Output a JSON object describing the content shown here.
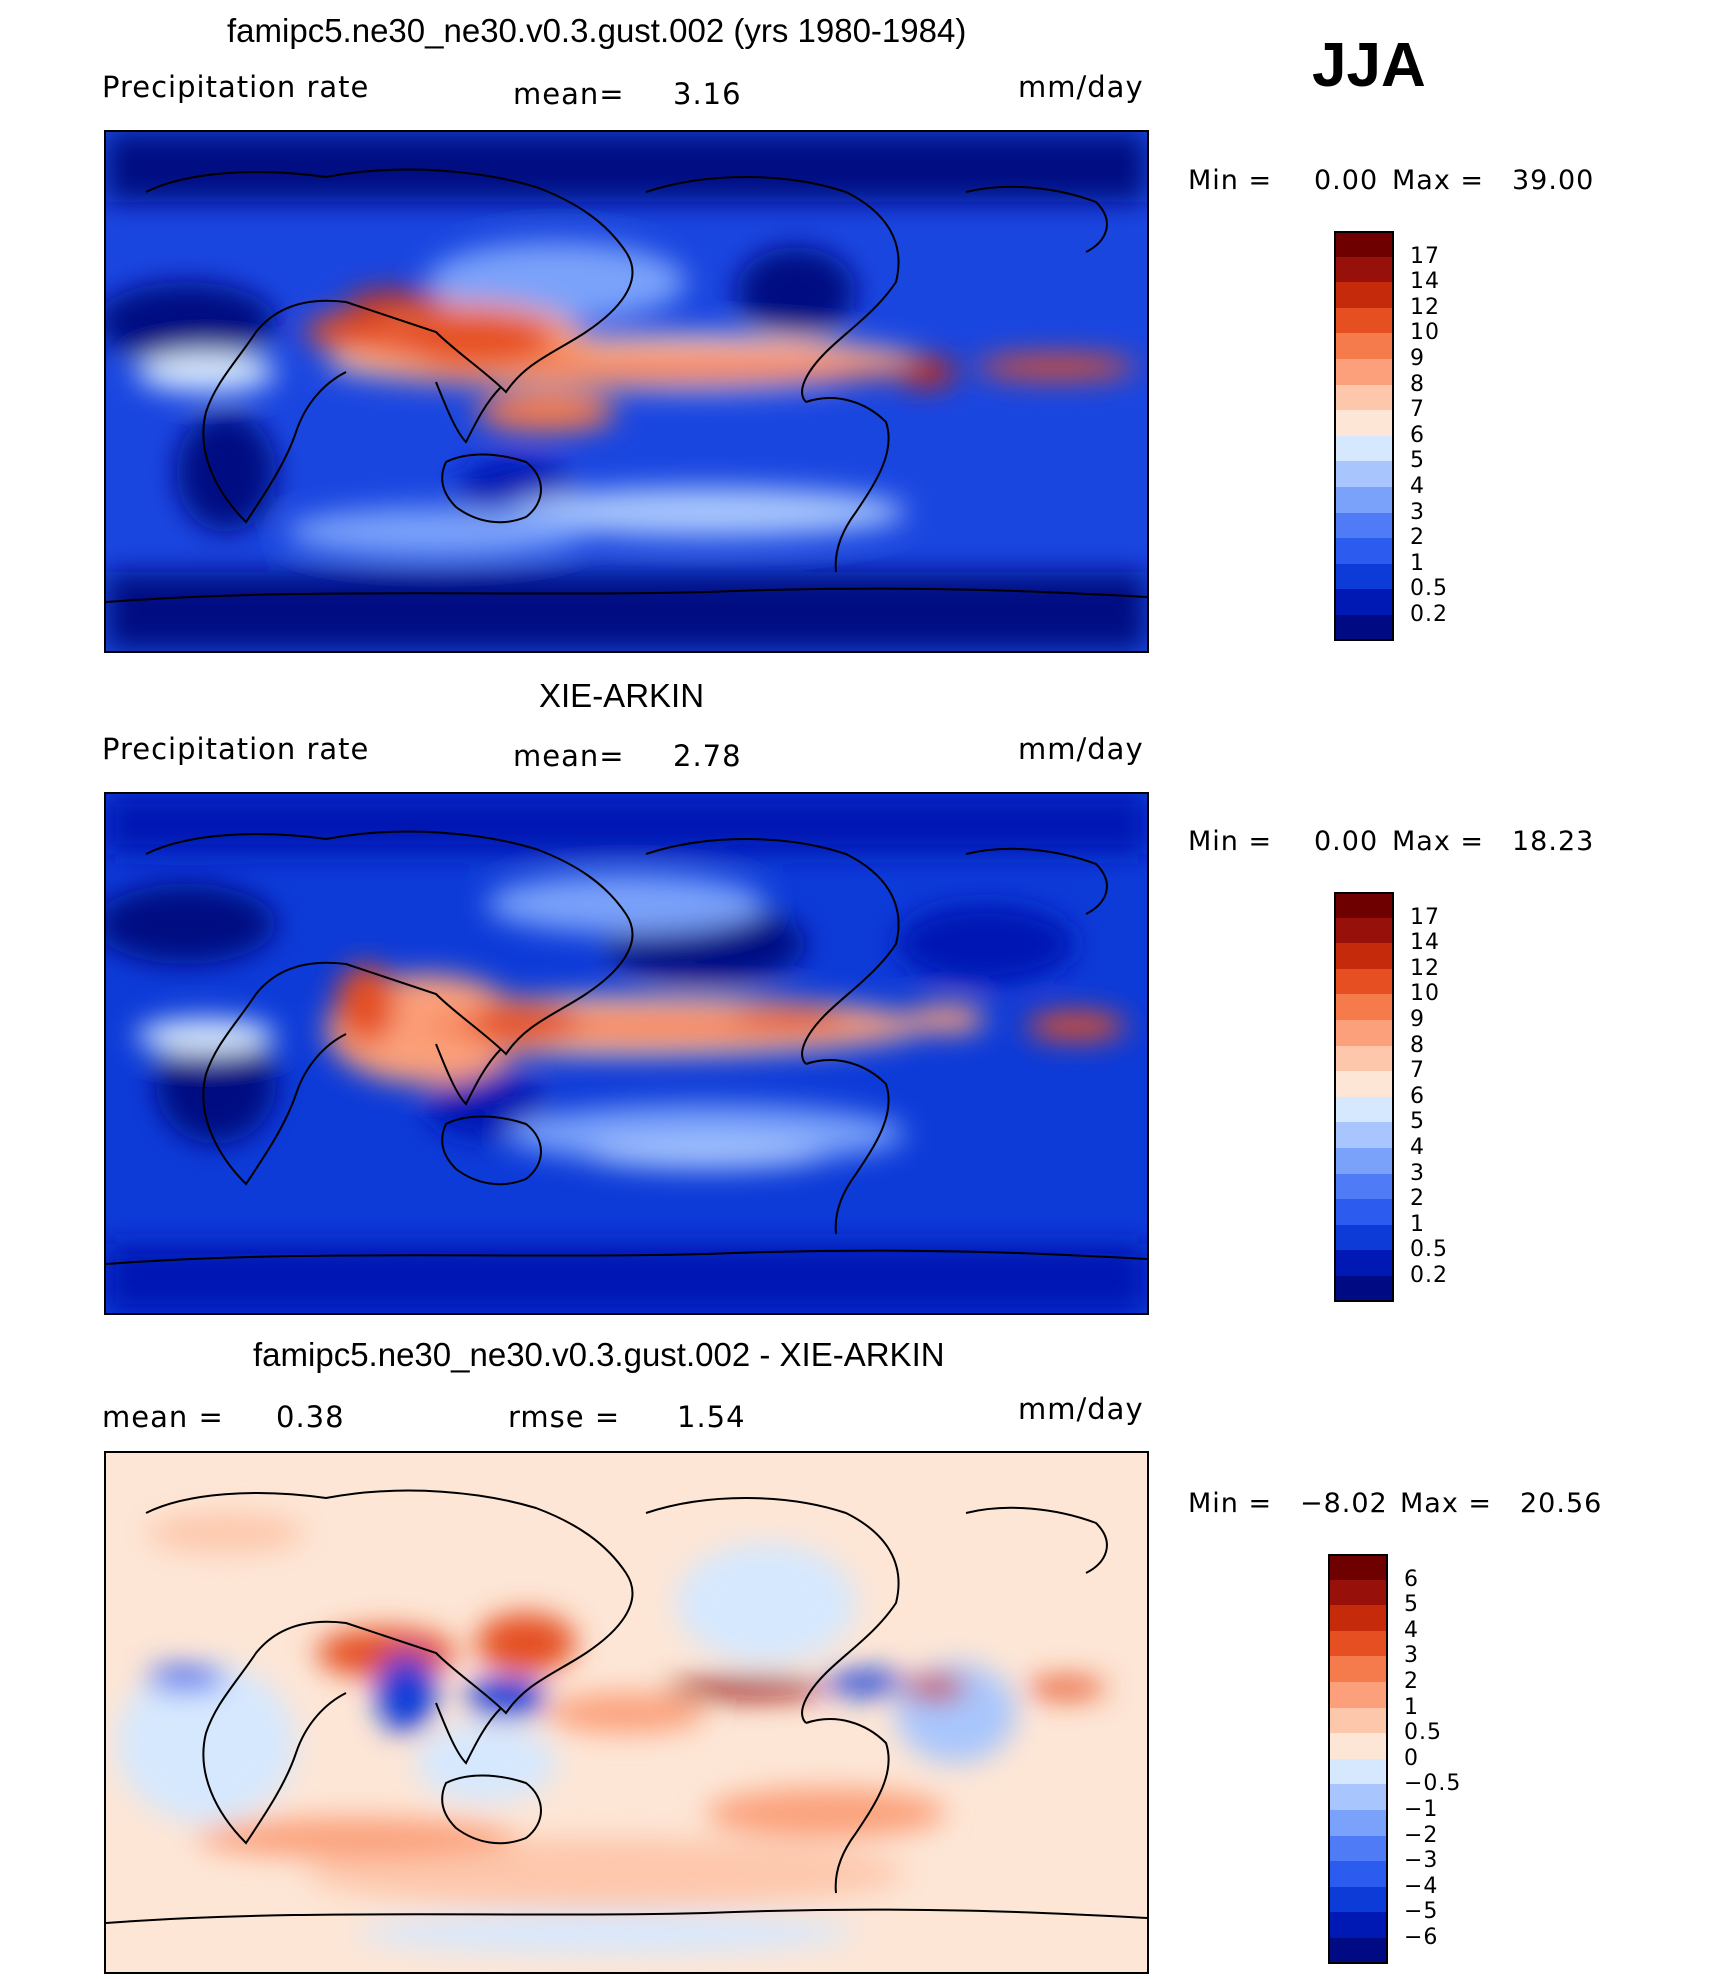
{
  "season": "JJA",
  "colors": {
    "precip_scale": [
      "#000a82",
      "#0018b4",
      "#0d3bd8",
      "#2c5cef",
      "#4f7cf6",
      "#7aa2fa",
      "#a8c6fd",
      "#d6e8fe",
      "#fde6d6",
      "#fdc7ac",
      "#fba07a",
      "#f57a4c",
      "#e54f22",
      "#c52a0a",
      "#97100a",
      "#6e0000"
    ],
    "diff_scale": [
      "#000a82",
      "#0018b4",
      "#0d3bd8",
      "#2c5cef",
      "#4f7cf6",
      "#7aa2fa",
      "#a8c6fd",
      "#d6e8fe",
      "#fde6d6",
      "#fdc7ac",
      "#fba07a",
      "#f57a4c",
      "#e54f22",
      "#c52a0a",
      "#97100a",
      "#6e0000"
    ]
  },
  "panels": [
    {
      "title": "famipc5.ne30_ne30.v0.3.gust.002 (yrs 1980-1984)",
      "left_label": "Precipitation rate",
      "stat1": "mean=",
      "stat1_value": "3.16",
      "stat2": "",
      "stat2_value": "",
      "units": "mm/day",
      "min_label": "Min =",
      "min_value": "0.00",
      "max_label": "Max =",
      "max_value": "39.00",
      "colorbar_labels": [
        "17",
        "14",
        "12",
        "10",
        "9",
        "8",
        "7",
        "6",
        "5",
        "4",
        "3",
        "2",
        "1",
        "0.5",
        "0.2"
      ]
    },
    {
      "title": "XIE-ARKIN",
      "left_label": "Precipitation rate",
      "stat1": "mean=",
      "stat1_value": "2.78",
      "stat2": "",
      "stat2_value": "",
      "units": "mm/day",
      "min_label": "Min =",
      "min_value": "0.00",
      "max_label": "Max =",
      "max_value": "18.23",
      "colorbar_labels": [
        "17",
        "14",
        "12",
        "10",
        "9",
        "8",
        "7",
        "6",
        "5",
        "4",
        "3",
        "2",
        "1",
        "0.5",
        "0.2"
      ]
    },
    {
      "title": "famipc5.ne30_ne30.v0.3.gust.002 - XIE-ARKIN",
      "left_label": "mean =",
      "left_value": "0.38",
      "stat1": "rmse =",
      "stat1_value": "1.54",
      "units": "mm/day",
      "min_label": "Min =",
      "min_value": "−8.02",
      "max_label": "Max =",
      "max_value": "20.56",
      "colorbar_labels": [
        "6",
        "5",
        "4",
        "3",
        "2",
        "1",
        "0.5",
        "0",
        "−0.5",
        "−1",
        "−2",
        "−3",
        "−4",
        "−5",
        "−6"
      ]
    }
  ],
  "chart_data": [
    {
      "type": "heatmap",
      "title": "famipc5.ne30_ne30.v0.3.gust.002 (yrs 1980-1984)",
      "variable": "Precipitation rate",
      "units": "mm/day",
      "mean": 3.16,
      "min": 0.0,
      "max": 39.0,
      "contour_levels": [
        0.2,
        0.5,
        1,
        2,
        3,
        4,
        5,
        6,
        7,
        8,
        9,
        10,
        12,
        14,
        17
      ]
    },
    {
      "type": "heatmap",
      "title": "XIE-ARKIN",
      "variable": "Precipitation rate",
      "units": "mm/day",
      "mean": 2.78,
      "min": 0.0,
      "max": 18.23,
      "contour_levels": [
        0.2,
        0.5,
        1,
        2,
        3,
        4,
        5,
        6,
        7,
        8,
        9,
        10,
        12,
        14,
        17
      ]
    },
    {
      "type": "heatmap",
      "title": "famipc5.ne30_ne30.v0.3.gust.002 - XIE-ARKIN",
      "units": "mm/day",
      "mean": 0.38,
      "rmse": 1.54,
      "min": -8.02,
      "max": 20.56,
      "contour_levels": [
        -6,
        -5,
        -4,
        -3,
        -2,
        -1,
        -0.5,
        0,
        0.5,
        1,
        2,
        3,
        4,
        5,
        6
      ]
    }
  ]
}
